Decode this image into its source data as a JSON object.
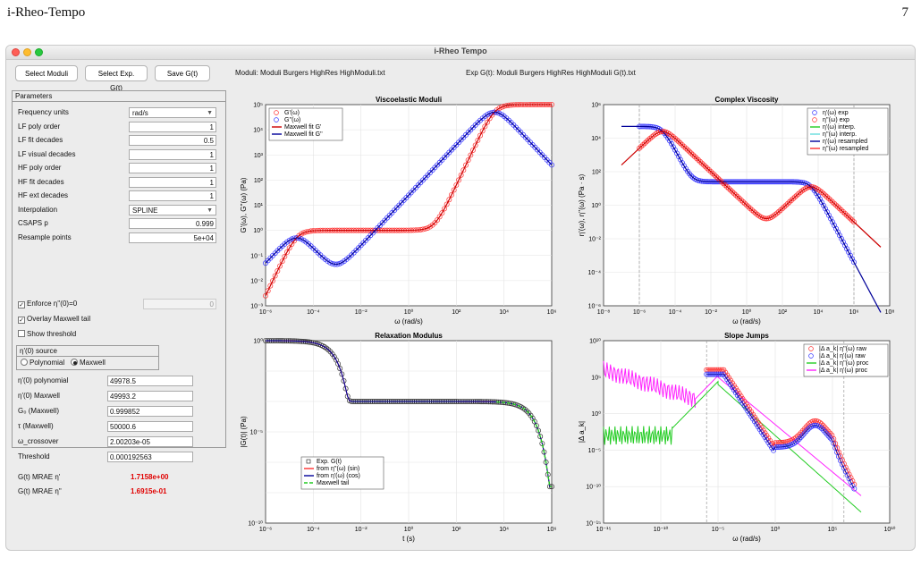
{
  "doc": {
    "header_left": "i-Rheo-Tempo",
    "header_right": "7"
  },
  "window": {
    "title": "i-Rheo Tempo"
  },
  "toolbar": {
    "select_moduli": "Select Moduli",
    "select_exp": "Select Exp. G(t)",
    "save": "Save G(t)",
    "moduli_file": "Moduli: Moduli Burgers HighRes HighModuli.txt",
    "exp_file": "Exp G(t): Moduli Burgers HighRes HighModuli G(t).txt"
  },
  "params": {
    "title": "Parameters",
    "rows": [
      {
        "label": "Frequency units",
        "value": "rad/s",
        "kind": "select"
      },
      {
        "label": "LF poly order",
        "value": "1"
      },
      {
        "label": "LF fit decades",
        "value": "0.5"
      },
      {
        "label": "LF visual decades",
        "value": "1"
      },
      {
        "label": "HF poly order",
        "value": "1"
      },
      {
        "label": "HF fit decades",
        "value": "1"
      },
      {
        "label": "HF ext decades",
        "value": "1"
      },
      {
        "label": "Interpolation",
        "value": "SPLINE",
        "kind": "select"
      },
      {
        "label": "CSAPS p",
        "value": "0.999"
      },
      {
        "label": "Resample points",
        "value": "5e+04"
      }
    ],
    "enforce_label": "Enforce η''(0)=0",
    "enforce_value": "0",
    "overlay_label": "Overlay Maxwell tail",
    "threshold_label": "Show threshold",
    "source_title": "η'(0) source",
    "source_poly": "Polynomial",
    "source_maxwell": "Maxwell",
    "results": [
      {
        "label": "η'(0) polynomial",
        "value": "49978.5"
      },
      {
        "label": "η'(0) Maxwell",
        "value": "49993.2"
      },
      {
        "label": "G₀ (Maxwell)",
        "value": "0.999852"
      },
      {
        "label": "τ (Maxwell)",
        "value": "50000.6"
      },
      {
        "label": "ω_crossover",
        "value": "2.00203e-05"
      },
      {
        "label": "Threshold",
        "value": "0.000192563"
      }
    ],
    "mrae1_label": "G(t) MRAE η'",
    "mrae1_value": "1.7158e+00",
    "mrae2_label": "G(t) MRAE η''",
    "mrae2_value": "1.6915e-01"
  },
  "colors": {
    "red": "#ff3030",
    "blue": "#3030ff",
    "green": "#22cc22",
    "magenta": "#ff22ff",
    "darkred": "#cc0000",
    "darkblue": "#000099"
  },
  "plots": {
    "p1": {
      "title": "Viscoelastic Moduli",
      "xlabel": "ω  (rad/s)",
      "ylabel": "G'(ω), G''(ω)  (Pa)",
      "xticks": [
        "10⁻⁶",
        "10⁻⁴",
        "10⁻²",
        "10⁰",
        "10²",
        "10⁴",
        "10⁶"
      ],
      "yticks": [
        "10⁵",
        "10⁴",
        "10³",
        "10²",
        "10¹",
        "10⁰",
        "10⁻¹",
        "10⁻²",
        "10⁻³"
      ],
      "legend": [
        "G'(ω)",
        "G''(ω)",
        "Maxwell fit G'",
        "Maxwell fit G''"
      ]
    },
    "p2": {
      "title": "Complex Viscosity",
      "xlabel": "ω  (rad/s)",
      "ylabel": "η'(ω), η''(ω)  (Pa · s)",
      "xticks": [
        "10⁻⁸",
        "10⁻⁶",
        "10⁻⁴",
        "10⁻²",
        "10⁰",
        "10²",
        "10⁴",
        "10⁶",
        "10⁸"
      ],
      "yticks": [
        "10⁶",
        "10⁴",
        "10²",
        "10⁰",
        "10⁻²",
        "10⁻⁴",
        "10⁻⁶"
      ],
      "legend": [
        "η'(ω)  exp",
        "η''(ω)  exp",
        "η'(ω)  interp.",
        "η''(ω)  interp.",
        "η'(ω)  resampled",
        "η''(ω)  resampled"
      ]
    },
    "p3": {
      "title": "Relaxation Modulus",
      "xlabel": "t (s)",
      "ylabel": "|G(t)|  (Pa)",
      "xticks": [
        "10⁻⁶",
        "10⁻⁴",
        "10⁻²",
        "10⁰",
        "10²",
        "10⁴",
        "10⁶"
      ],
      "yticks": [
        "10⁰",
        "10⁻⁵",
        "10⁻¹⁰"
      ],
      "legend": [
        "Exp. G(t)",
        "from  η''(ω)  (sin)",
        "from  η'(ω)  (cos)",
        "Maxwell tail"
      ]
    },
    "p4": {
      "title": "Slope Jumps",
      "xlabel": "ω  (rad/s)",
      "ylabel": "|Δ  a_k|",
      "xticks": [
        "10⁻¹⁵",
        "10⁻¹⁰",
        "10⁻⁵",
        "10⁰",
        "10⁵",
        "10¹⁰"
      ],
      "yticks": [
        "10¹⁰",
        "10⁵",
        "10⁰",
        "10⁻⁵",
        "10⁻¹⁰",
        "10⁻¹⁵"
      ],
      "legend": [
        "|Δ  a_k|  η''(ω)  raw",
        "|Δ  a_k|  η'(ω)  raw",
        "|Δ  a_k|  η''(ω)  proc",
        "|Δ  a_k|  η'(ω)  proc"
      ]
    }
  }
}
